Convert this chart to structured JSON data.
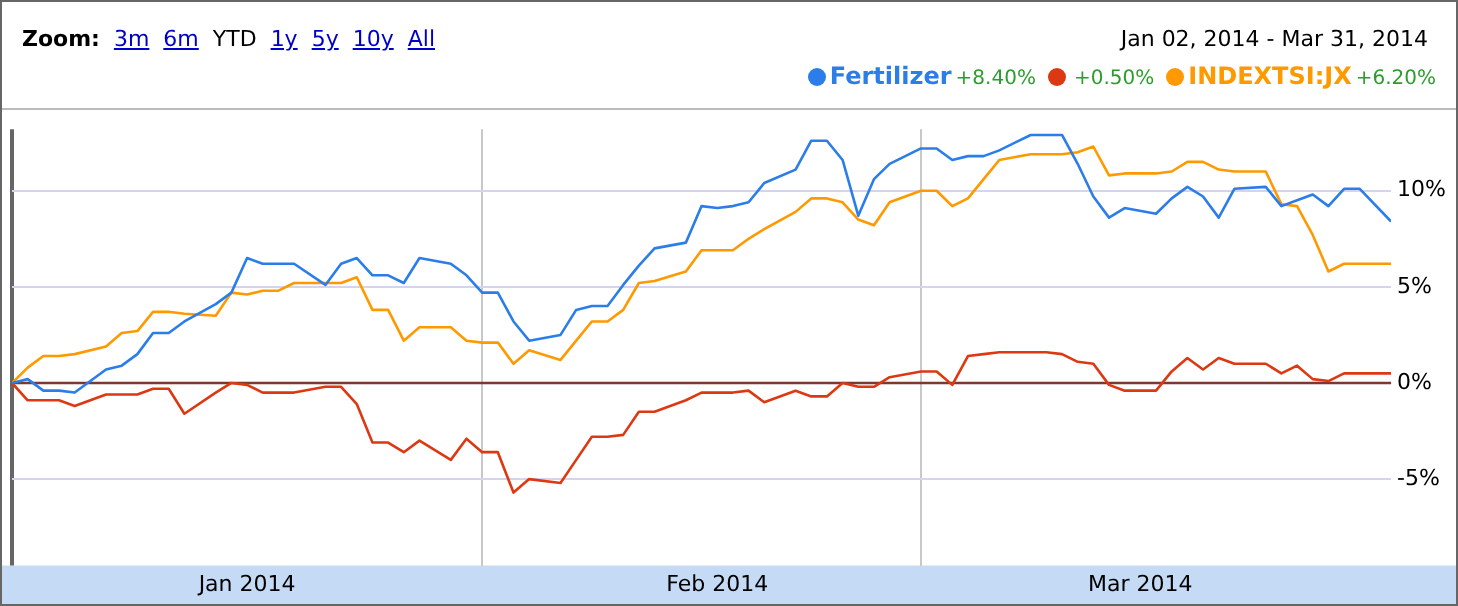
{
  "chart_data": {
    "type": "line",
    "subtitle": "Jan 02, 2014  -  Mar 31, 2014",
    "annotations": [
      "Zoom:",
      "3m",
      "6m",
      "YTD",
      "1y",
      "5y",
      "10y",
      "All",
      "+8.40%",
      "+0.50%",
      "+6.20%"
    ],
    "x": [
      "2014-01-02",
      "2014-01-03",
      "2014-01-04",
      "2014-01-05",
      "2014-01-06",
      "2014-01-08",
      "2014-01-09",
      "2014-01-10",
      "2014-01-11",
      "2014-01-12",
      "2014-01-13",
      "2014-01-15",
      "2014-01-16",
      "2014-01-17",
      "2014-01-18",
      "2014-01-19",
      "2014-01-20",
      "2014-01-22",
      "2014-01-23",
      "2014-01-24",
      "2014-01-25",
      "2014-01-26",
      "2014-01-27",
      "2014-01-28",
      "2014-01-30",
      "2014-01-31",
      "2014-02-01",
      "2014-02-02",
      "2014-02-03",
      "2014-02-04",
      "2014-02-06",
      "2014-02-07",
      "2014-02-08",
      "2014-02-09",
      "2014-02-10",
      "2014-02-11",
      "2014-02-12",
      "2014-02-14",
      "2014-02-15",
      "2014-02-16",
      "2014-02-17",
      "2014-02-18",
      "2014-02-19",
      "2014-02-21",
      "2014-02-22",
      "2014-02-23",
      "2014-02-24",
      "2014-02-25",
      "2014-02-26",
      "2014-02-27",
      "2014-03-01",
      "2014-03-02",
      "2014-03-03",
      "2014-03-04",
      "2014-03-05",
      "2014-03-06",
      "2014-03-08",
      "2014-03-09",
      "2014-03-10",
      "2014-03-11",
      "2014-03-12",
      "2014-03-13",
      "2014-03-14",
      "2014-03-16",
      "2014-03-17",
      "2014-03-18",
      "2014-03-19",
      "2014-03-20",
      "2014-03-21",
      "2014-03-23",
      "2014-03-24",
      "2014-03-25",
      "2014-03-26",
      "2014-03-27",
      "2014-03-28",
      "2014-03-29",
      "2014-03-31"
    ],
    "series": [
      {
        "name": "Fertilizer",
        "color": "#2b7de9",
        "values": [
          0,
          0.2,
          -0.4,
          -0.4,
          -0.5,
          0.7,
          0.9,
          1.5,
          2.6,
          2.6,
          3.2,
          4.1,
          4.7,
          6.5,
          6.2,
          6.2,
          6.2,
          5.1,
          6.2,
          6.5,
          5.6,
          5.6,
          5.2,
          6.5,
          6.2,
          5.6,
          4.7,
          4.7,
          3.2,
          2.2,
          2.5,
          3.8,
          4,
          4,
          5.1,
          6.1,
          7,
          7.3,
          9.2,
          9.1,
          9.2,
          9.4,
          10.4,
          11.1,
          12.6,
          12.6,
          11.6,
          8.7,
          10.6,
          11.4,
          12.2,
          12.2,
          11.6,
          11.8,
          11.8,
          12.1,
          12.9,
          12.9,
          12.9,
          11.4,
          9.7,
          8.6,
          9.1,
          8.8,
          9.6,
          10.2,
          9.7,
          8.6,
          10.1,
          10.2,
          9.2,
          9.5,
          9.8,
          9.2,
          10.1,
          10.1,
          8.4
        ]
      },
      {
        "color": "#dc3912",
        "values": [
          0,
          -0.9,
          -0.9,
          -0.9,
          -1.2,
          -0.6,
          -0.6,
          -0.6,
          -0.3,
          -0.3,
          -1.6,
          -0.5,
          0,
          -0.1,
          -0.5,
          -0.5,
          -0.5,
          -0.2,
          -0.2,
          -1.1,
          -3.1,
          -3.1,
          -3.6,
          -3,
          -4,
          -2.9,
          -3.6,
          -3.6,
          -5.7,
          -5,
          -5.2,
          -4,
          -2.8,
          -2.8,
          -2.7,
          -1.5,
          -1.5,
          -0.9,
          -0.5,
          -0.5,
          -0.5,
          -0.4,
          -1,
          -0.4,
          -0.7,
          -0.7,
          0,
          -0.2,
          -0.2,
          0.3,
          0.6,
          0.6,
          -0.1,
          1.4,
          1.5,
          1.6,
          1.6,
          1.6,
          1.5,
          1.1,
          1,
          -0.1,
          -0.4,
          -0.4,
          0.6,
          1.3,
          0.7,
          1.3,
          1,
          1,
          0.5,
          0.9,
          0.2,
          0.1,
          0.5,
          0.5,
          0.5
        ]
      },
      {
        "name": "INDEXTSI:JX",
        "color": "#ff9900",
        "values": [
          0,
          0.8,
          1.4,
          1.4,
          1.5,
          1.9,
          2.6,
          2.7,
          3.7,
          3.7,
          3.6,
          3.5,
          4.7,
          4.6,
          4.8,
          4.8,
          5.2,
          5.2,
          5.2,
          5.5,
          3.8,
          3.8,
          2.2,
          2.9,
          2.9,
          2.2,
          2.1,
          2.1,
          1,
          1.7,
          1.2,
          2.2,
          3.2,
          3.2,
          3.8,
          5.2,
          5.3,
          5.8,
          6.9,
          6.9,
          6.9,
          7.5,
          8,
          8.9,
          9.6,
          9.6,
          9.4,
          8.5,
          8.2,
          9.4,
          10,
          10,
          9.2,
          9.6,
          10.6,
          11.6,
          11.9,
          11.9,
          11.9,
          12,
          12.3,
          10.8,
          10.9,
          10.9,
          11,
          11.5,
          11.5,
          11.1,
          11,
          11,
          9.3,
          9.2,
          7.7,
          5.8,
          6.2,
          6.2,
          6.2
        ]
      }
    ],
    "xlim": [
      "2014-01-02",
      "2014-03-31"
    ],
    "xticks": [
      {
        "value": "2014-01-17",
        "label": "Jan 2014"
      },
      {
        "value": "2014-02-01",
        "label": null
      },
      {
        "value": "2014-02-16",
        "label": "Feb 2014"
      },
      {
        "value": "2014-03-01",
        "label": null
      },
      {
        "value": "2014-03-15",
        "label": "Mar 2014"
      }
    ],
    "ylim": [
      -9.5,
      13.2
    ],
    "yticks": [
      {
        "value": -5,
        "label": "-5%"
      },
      {
        "value": 0,
        "label": "0%"
      },
      {
        "value": 5,
        "label": "5%"
      },
      {
        "value": 10,
        "label": "10%"
      }
    ],
    "ref_lines": [
      {
        "axis": "y",
        "value": 0,
        "color": "#7a3a2c"
      }
    ],
    "grid": true,
    "legend": "top right"
  }
}
